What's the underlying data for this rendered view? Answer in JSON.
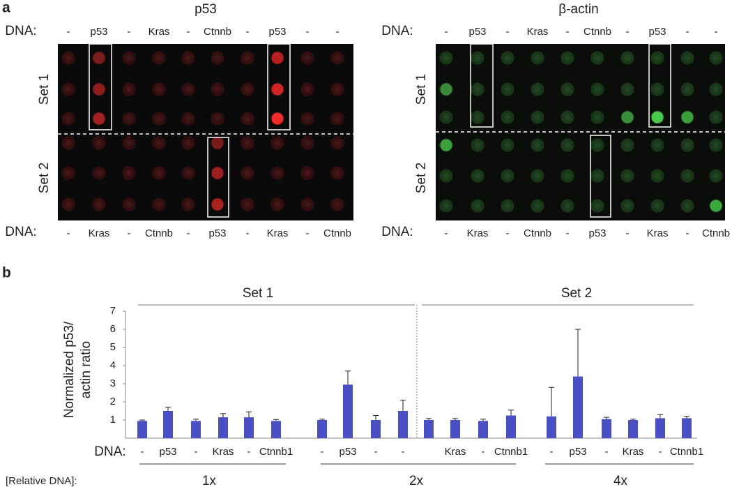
{
  "panel_a": {
    "label": "a",
    "dna_label": "DNA:",
    "images": [
      {
        "title": "p53",
        "sets": [
          "Set 1",
          "Set 2"
        ],
        "top_dna": [
          "-",
          "p53",
          "-",
          "Kras",
          "-",
          "Ctnnb",
          "-",
          "p53",
          "-",
          "-"
        ],
        "bottom_dna": [
          "-",
          "Kras",
          "-",
          "Ctnnb",
          "-",
          "p53",
          "-",
          "Kras",
          "-",
          "Ctnnb"
        ]
      },
      {
        "title": "β-actin",
        "sets": [
          "Set 1",
          "Set 2"
        ],
        "top_dna": [
          "-",
          "p53",
          "-",
          "Kras",
          "-",
          "Ctnnb",
          "-",
          "p53",
          "-",
          "-"
        ],
        "bottom_dna": [
          "-",
          "Kras",
          "-",
          "Ctnnb",
          "-",
          "p53",
          "-",
          "Kras",
          "-",
          "Ctnnb"
        ]
      }
    ]
  },
  "panel_b": {
    "label": "b"
  },
  "chart_data": {
    "type": "bar",
    "ylabel": [
      "Normalized p53/",
      "actin ratio"
    ],
    "dna_label": "DNA:",
    "relative_dna_label": "[Relative DNA]:",
    "sets": [
      "Set 1",
      "Set 2"
    ],
    "groups": [
      "1x",
      "2x",
      "4x"
    ],
    "categories": [
      "-",
      "p53",
      "-",
      "Kras",
      "-",
      "Ctnnb1",
      "-",
      "p53",
      "-",
      "-",
      null,
      "Kras",
      "-",
      "Ctnnb1",
      "-",
      "p53",
      "-",
      "Kras",
      "-",
      "Ctnnb1"
    ],
    "values": [
      0.95,
      1.5,
      0.95,
      1.15,
      1.15,
      0.95,
      1.0,
      2.95,
      1.0,
      1.5,
      1.0,
      1.0,
      0.95,
      1.25,
      1.2,
      3.4,
      1.05,
      1.0,
      1.1,
      1.1
    ],
    "errors": [
      0.05,
      0.2,
      0.1,
      0.2,
      0.3,
      0.08,
      0.05,
      0.75,
      0.25,
      0.6,
      0.08,
      0.08,
      0.1,
      0.3,
      1.6,
      2.6,
      0.1,
      0.05,
      0.2,
      0.1
    ],
    "color": "#4a4fc2",
    "ylim": [
      0,
      7
    ],
    "yticks": [
      1,
      2,
      3,
      4,
      5,
      6,
      7
    ]
  }
}
